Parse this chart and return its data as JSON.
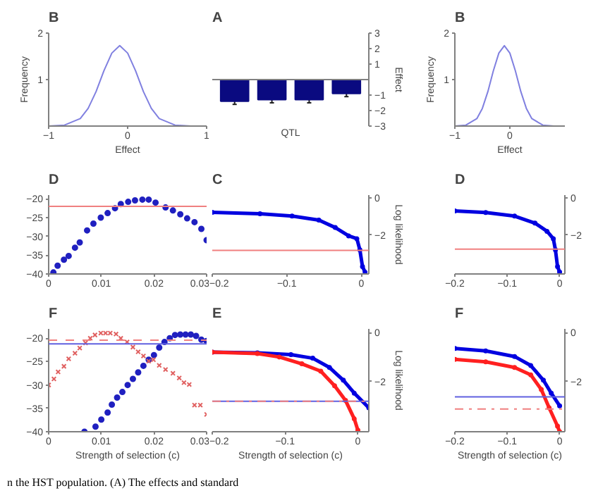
{
  "chart_data": [
    {
      "type": "line",
      "title": "B",
      "xlabel": "Effect",
      "ylabel": "Frequency",
      "x": [
        -1,
        -0.8,
        -0.6,
        -0.5,
        -0.4,
        -0.3,
        -0.2,
        -0.1,
        0,
        0.1,
        0.2,
        0.3,
        0.4,
        0.6,
        0.8,
        1
      ],
      "values": [
        0,
        0.02,
        0.16,
        0.38,
        0.74,
        1.19,
        1.57,
        1.73,
        1.57,
        1.19,
        0.74,
        0.38,
        0.16,
        0.02,
        0,
        0
      ],
      "color": "#8080e0",
      "xlim": [
        -1,
        1
      ],
      "ylim": [
        0,
        2
      ],
      "xticks": [
        -1,
        0,
        1
      ],
      "yticks": [
        1,
        2
      ]
    },
    {
      "type": "bar",
      "title": "A",
      "xlabel": "QTL",
      "ylabel": "Effect",
      "categories": [
        null,
        null,
        null,
        null
      ],
      "values": [
        -1.4,
        -1.3,
        -1.3,
        -0.9
      ],
      "errors": [
        0.2,
        0.2,
        0.2,
        0.2
      ],
      "color": "#0a0a80",
      "ylim": [
        -3,
        3
      ],
      "yticks": [
        -3,
        -2,
        -1,
        1,
        2,
        3
      ]
    },
    {
      "type": "line",
      "title": "B",
      "xlabel": "Effect",
      "ylabel": "Frequency",
      "x": [
        -1,
        -0.8,
        -0.6,
        -0.5,
        -0.4,
        -0.3,
        -0.2,
        -0.1,
        0,
        0.1,
        0.2,
        0.3,
        0.4,
        0.6,
        0.8,
        1
      ],
      "values": [
        0,
        0.02,
        0.16,
        0.38,
        0.74,
        1.19,
        1.57,
        1.73,
        1.57,
        1.19,
        0.74,
        0.38,
        0.16,
        0.02,
        0,
        0
      ],
      "color": "#8080e0",
      "xlim": [
        -1,
        1
      ],
      "ylim": [
        0,
        2
      ],
      "xticks": [
        -1,
        0
      ],
      "yticks": [
        1,
        2
      ]
    },
    {
      "type": "scatter",
      "title": "D",
      "marker": "circle",
      "x": [
        0.0009,
        0.0017,
        0.0029,
        0.0038,
        0.005,
        0.0059,
        0.0073,
        0.0085,
        0.0099,
        0.0112,
        0.0126,
        0.0137,
        0.0151,
        0.0164,
        0.0178,
        0.019,
        0.0203,
        0.0222,
        0.0236,
        0.025,
        0.0263,
        0.0277,
        0.029,
        0.03
      ],
      "values": [
        -39.6,
        -37.8,
        -36.2,
        -35.2,
        -33,
        -31.6,
        -28.4,
        -26.6,
        -25,
        -23.8,
        -22.5,
        -21.4,
        -20.8,
        -20.4,
        -20.2,
        -20.2,
        -21,
        -22.3,
        -23.1,
        -24.1,
        -25.2,
        -26.2,
        -28,
        -31
      ],
      "color": "#2020c0",
      "xlim": [
        0,
        0.03
      ],
      "ylim": [
        -40,
        -19
      ],
      "xticks": [
        0,
        0.01,
        0.02,
        0.03
      ],
      "yticks": [
        -40,
        -35,
        -30,
        -25,
        -20
      ],
      "ref_lines": [
        {
          "axis": "y",
          "value": -22,
          "color": "#f08080"
        }
      ]
    },
    {
      "type": "line",
      "title": "C",
      "ylabel": "Log likelihood",
      "marker": "circle",
      "x": [
        -0.2,
        -0.136,
        -0.093,
        -0.057,
        -0.035,
        -0.017,
        -0.006,
        -0.002,
        0.0015,
        0.005
      ],
      "values": [
        -0.78,
        -0.86,
        -0.98,
        -1.2,
        -1.6,
        -2.05,
        -2.2,
        -2.8,
        -3.7,
        -4.0
      ],
      "color": "#0000e0",
      "xlim": [
        -0.2,
        0.01
      ],
      "ylim": [
        -4.1,
        0.15
      ],
      "xticks": [
        -0.2,
        -0.1,
        0
      ],
      "yticks": [
        -2,
        0
      ],
      "ref_lines": [
        {
          "axis": "y",
          "value": -2.83,
          "color": "#f08080"
        }
      ]
    },
    {
      "type": "line",
      "title": "D",
      "marker": "circle",
      "x": [
        -0.2,
        -0.141,
        -0.086,
        -0.047,
        -0.024,
        -0.012,
        -0.008,
        -0.004,
        0
      ],
      "values": [
        -0.7,
        -0.79,
        -0.98,
        -1.36,
        -1.8,
        -2.2,
        -2.8,
        -3.7,
        -4.0
      ],
      "color": "#0000e0",
      "xlim": [
        -0.2,
        0.01
      ],
      "ylim": [
        -4.1,
        0.15
      ],
      "xticks": [
        -0.2,
        -0.1,
        0
      ],
      "yticks": [
        -2,
        0
      ],
      "ref_lines": [
        {
          "axis": "y",
          "value": -2.76,
          "color": "#f08080"
        }
      ]
    },
    {
      "type": "scatter",
      "title": "F",
      "xlabel": "Strength of selection (c)",
      "xlim": [
        0,
        0.03
      ],
      "ylim": [
        -40,
        -18
      ],
      "xticks": [
        0,
        0.01,
        0.02,
        0.03
      ],
      "yticks": [
        -40,
        -35,
        -30,
        -25,
        -20
      ],
      "series": [
        {
          "color": "#2020c0",
          "marker": "circle",
          "x": [
            0.0068,
            0.0089,
            0.01,
            0.0112,
            0.012,
            0.013,
            0.014,
            0.015,
            0.016,
            0.017,
            0.018,
            0.019,
            0.02,
            0.021,
            0.022,
            0.023,
            0.024,
            0.025,
            0.026,
            0.027,
            0.028,
            0.029,
            0.03
          ],
          "values": [
            -40,
            -38.9,
            -37.4,
            -35.9,
            -34.2,
            -32.7,
            -31.5,
            -30,
            -28.7,
            -27.3,
            -25.9,
            -24.6,
            -23.6,
            -22,
            -20.8,
            -20,
            -19.3,
            -19.2,
            -19.2,
            -19.2,
            -19.5,
            -20.3,
            -20.6
          ]
        },
        {
          "color": "#e06060",
          "marker": "cross",
          "x": [
            0,
            0.001,
            0.0018,
            0.0029,
            0.0038,
            0.005,
            0.0059,
            0.007,
            0.0079,
            0.0088,
            0.0099,
            0.0108,
            0.0117,
            0.0128,
            0.0137,
            0.0149,
            0.016,
            0.017,
            0.018,
            0.019,
            0.0199,
            0.021,
            0.0222,
            0.0236,
            0.0248,
            0.0257,
            0.0267,
            0.0277,
            0.0288,
            0.03
          ],
          "values": [
            -30,
            -28.7,
            -27.2,
            -26,
            -24.4,
            -23.2,
            -22.1,
            -21,
            -20,
            -19.3,
            -18.9,
            -18.9,
            -18.9,
            -19.1,
            -20,
            -20.8,
            -21.9,
            -22.9,
            -23.8,
            -24.9,
            -24.6,
            -25.8,
            -26.7,
            -27.5,
            -28.5,
            -29.5,
            -29.9,
            -34.3,
            -34.3,
            -36.3
          ]
        }
      ],
      "ref_lines": [
        {
          "axis": "y",
          "value": -21.2,
          "color": "#6060e0"
        },
        {
          "axis": "y",
          "value": -20.4,
          "color": "#f08080",
          "line_style": "dashed"
        }
      ]
    },
    {
      "type": "line",
      "title": "E",
      "xlabel": "Strength of selection (c)",
      "ylabel": "Log likelihood",
      "marker": "circle",
      "xlim": [
        -0.2,
        0.015
      ],
      "ylim": [
        -4.06,
        0.15
      ],
      "xticks": [
        -0.2,
        -0.1,
        0
      ],
      "yticks": [
        -2,
        0
      ],
      "series": [
        {
          "color": "#0000e0",
          "x": [
            -0.2,
            -0.138,
            -0.092,
            -0.062,
            -0.039,
            -0.02,
            -0.005,
            0.015
          ],
          "values": [
            -0.8,
            -0.83,
            -0.9,
            -1.05,
            -1.43,
            -1.95,
            -2.48,
            -3.08
          ]
        },
        {
          "color": "#ff2020",
          "x": [
            -0.2,
            -0.138,
            -0.108,
            -0.077,
            -0.051,
            -0.032,
            -0.017,
            -0.005,
            0
          ],
          "values": [
            -0.8,
            -0.86,
            -1.0,
            -1.28,
            -1.58,
            -2.18,
            -2.78,
            -3.53,
            -4.0
          ]
        }
      ],
      "ref_lines": [
        {
          "axis": "y",
          "value": -2.81,
          "color": "#6060e0"
        },
        {
          "axis": "y",
          "value": -2.81,
          "color": "#f08080",
          "line_style": "dashdot"
        }
      ]
    },
    {
      "type": "line",
      "title": "F",
      "xlabel": "Strength of selection (c)",
      "marker": "circle",
      "xlim": [
        -0.2,
        0.01
      ],
      "ylim": [
        -4.06,
        0.15
      ],
      "xticks": [
        -0.2,
        -0.1,
        0
      ],
      "yticks": [
        -2,
        0
      ],
      "series": [
        {
          "color": "#0000e0",
          "x": [
            -0.2,
            -0.141,
            -0.086,
            -0.055,
            -0.031,
            -0.016,
            0
          ],
          "values": [
            -0.65,
            -0.75,
            -0.98,
            -1.35,
            -1.95,
            -2.48,
            -3.0
          ]
        },
        {
          "color": "#ff2020",
          "x": [
            -0.2,
            -0.141,
            -0.086,
            -0.055,
            -0.035,
            -0.02,
            -0.004,
            0
          ],
          "values": [
            -1.1,
            -1.2,
            -1.43,
            -1.73,
            -2.33,
            -3.08,
            -3.83,
            -4.06
          ]
        }
      ],
      "ref_lines": [
        {
          "axis": "y",
          "value": -2.63,
          "color": "#6060e0"
        },
        {
          "axis": "y",
          "value": -3.13,
          "color": "#f08080",
          "line_style": "dashdot"
        }
      ]
    },
    {
      "type": "other",
      "annotations": [
        "n the HST population. (A) The effects and standard"
      ]
    }
  ]
}
